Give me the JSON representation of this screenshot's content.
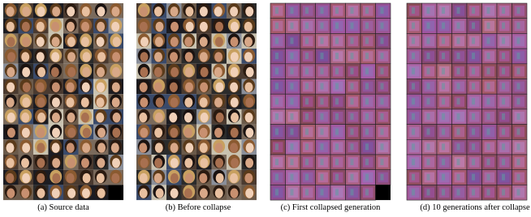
{
  "panels": [
    {
      "caption": "(a) Source data"
    },
    {
      "caption": "(b) Before collapse"
    },
    {
      "caption": "(c) First collapsed generation"
    },
    {
      "caption": "(d) 10 generations after collapse"
    }
  ]
}
